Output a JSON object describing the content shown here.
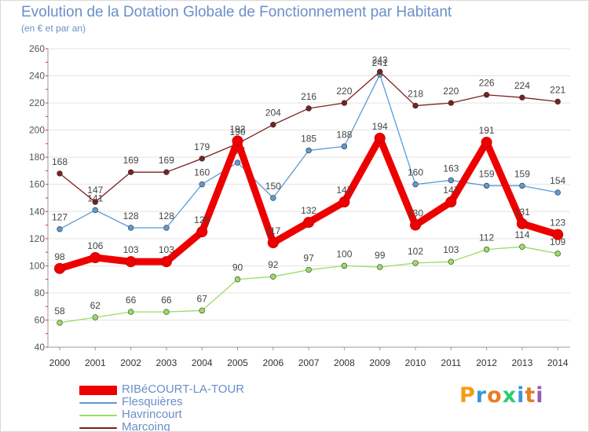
{
  "chart_data": {
    "type": "line",
    "title": "Evolution de la Dotation Globale de Fonctionnement par Habitant",
    "subtitle": "(en € et par an)",
    "xlabel": "",
    "ylabel": "",
    "ylim": [
      40,
      260
    ],
    "yticks": [
      "40",
      "60",
      "80",
      "100",
      "120",
      "140",
      "160",
      "180",
      "200",
      "220",
      "240",
      "260"
    ],
    "grid": true,
    "legend_position": "bottom-left",
    "categories": [
      "2000",
      "2001",
      "2002",
      "2003",
      "2004",
      "2005",
      "2006",
      "2007",
      "2008",
      "2009",
      "2010",
      "2011",
      "2012",
      "2013",
      "2014"
    ],
    "series": [
      {
        "name": "RIBéCOURT-LA-TOUR",
        "color": "#ee0000",
        "values": [
          98,
          106,
          103,
          103,
          125,
          192,
          117,
          132,
          147,
          194,
          130,
          147,
          191,
          131,
          123
        ],
        "labels": [
          "98",
          "106",
          "103",
          "103",
          "125",
          "192",
          "117",
          "132",
          "147",
          "194",
          "130",
          "147",
          "191",
          "131",
          "123"
        ]
      },
      {
        "name": "Flesquières",
        "color": "#5b9bd5",
        "values": [
          127,
          141,
          128,
          128,
          160,
          176,
          150,
          185,
          188,
          241,
          160,
          163,
          159,
          159,
          154
        ],
        "labels": [
          "127",
          "141",
          "128",
          "128",
          "160",
          "176",
          "150",
          "185",
          "188",
          "241",
          "160",
          "163",
          "159",
          "159",
          "154"
        ]
      },
      {
        "name": "Havrincourt",
        "color": "#99dd66",
        "values": [
          58,
          62,
          66,
          66,
          67,
          90,
          92,
          97,
          100,
          99,
          102,
          103,
          112,
          114,
          109
        ],
        "labels": [
          "58",
          "62",
          "66",
          "66",
          "67",
          "90",
          "92",
          "97",
          "100",
          "99",
          "102",
          "103",
          "112",
          "114",
          "109"
        ]
      },
      {
        "name": "Marcoing",
        "color": "#7b2020",
        "values": [
          168,
          147,
          169,
          169,
          179,
          190,
          204,
          216,
          220,
          243,
          218,
          220,
          226,
          224,
          221
        ],
        "labels": [
          "168",
          "147",
          "169",
          "169",
          "179",
          "190",
          "204",
          "216",
          "220",
          "243",
          "218",
          "220",
          "226",
          "224",
          "221"
        ]
      }
    ]
  },
  "branding": {
    "logo_letters": [
      "P",
      "r",
      "o",
      "x",
      "i",
      "t",
      "i"
    ],
    "logo_colors": [
      "#f39c12",
      "#3498db",
      "#e67e22",
      "#2ecc71",
      "#3498db",
      "#e67e22",
      "#9b59b6"
    ]
  }
}
